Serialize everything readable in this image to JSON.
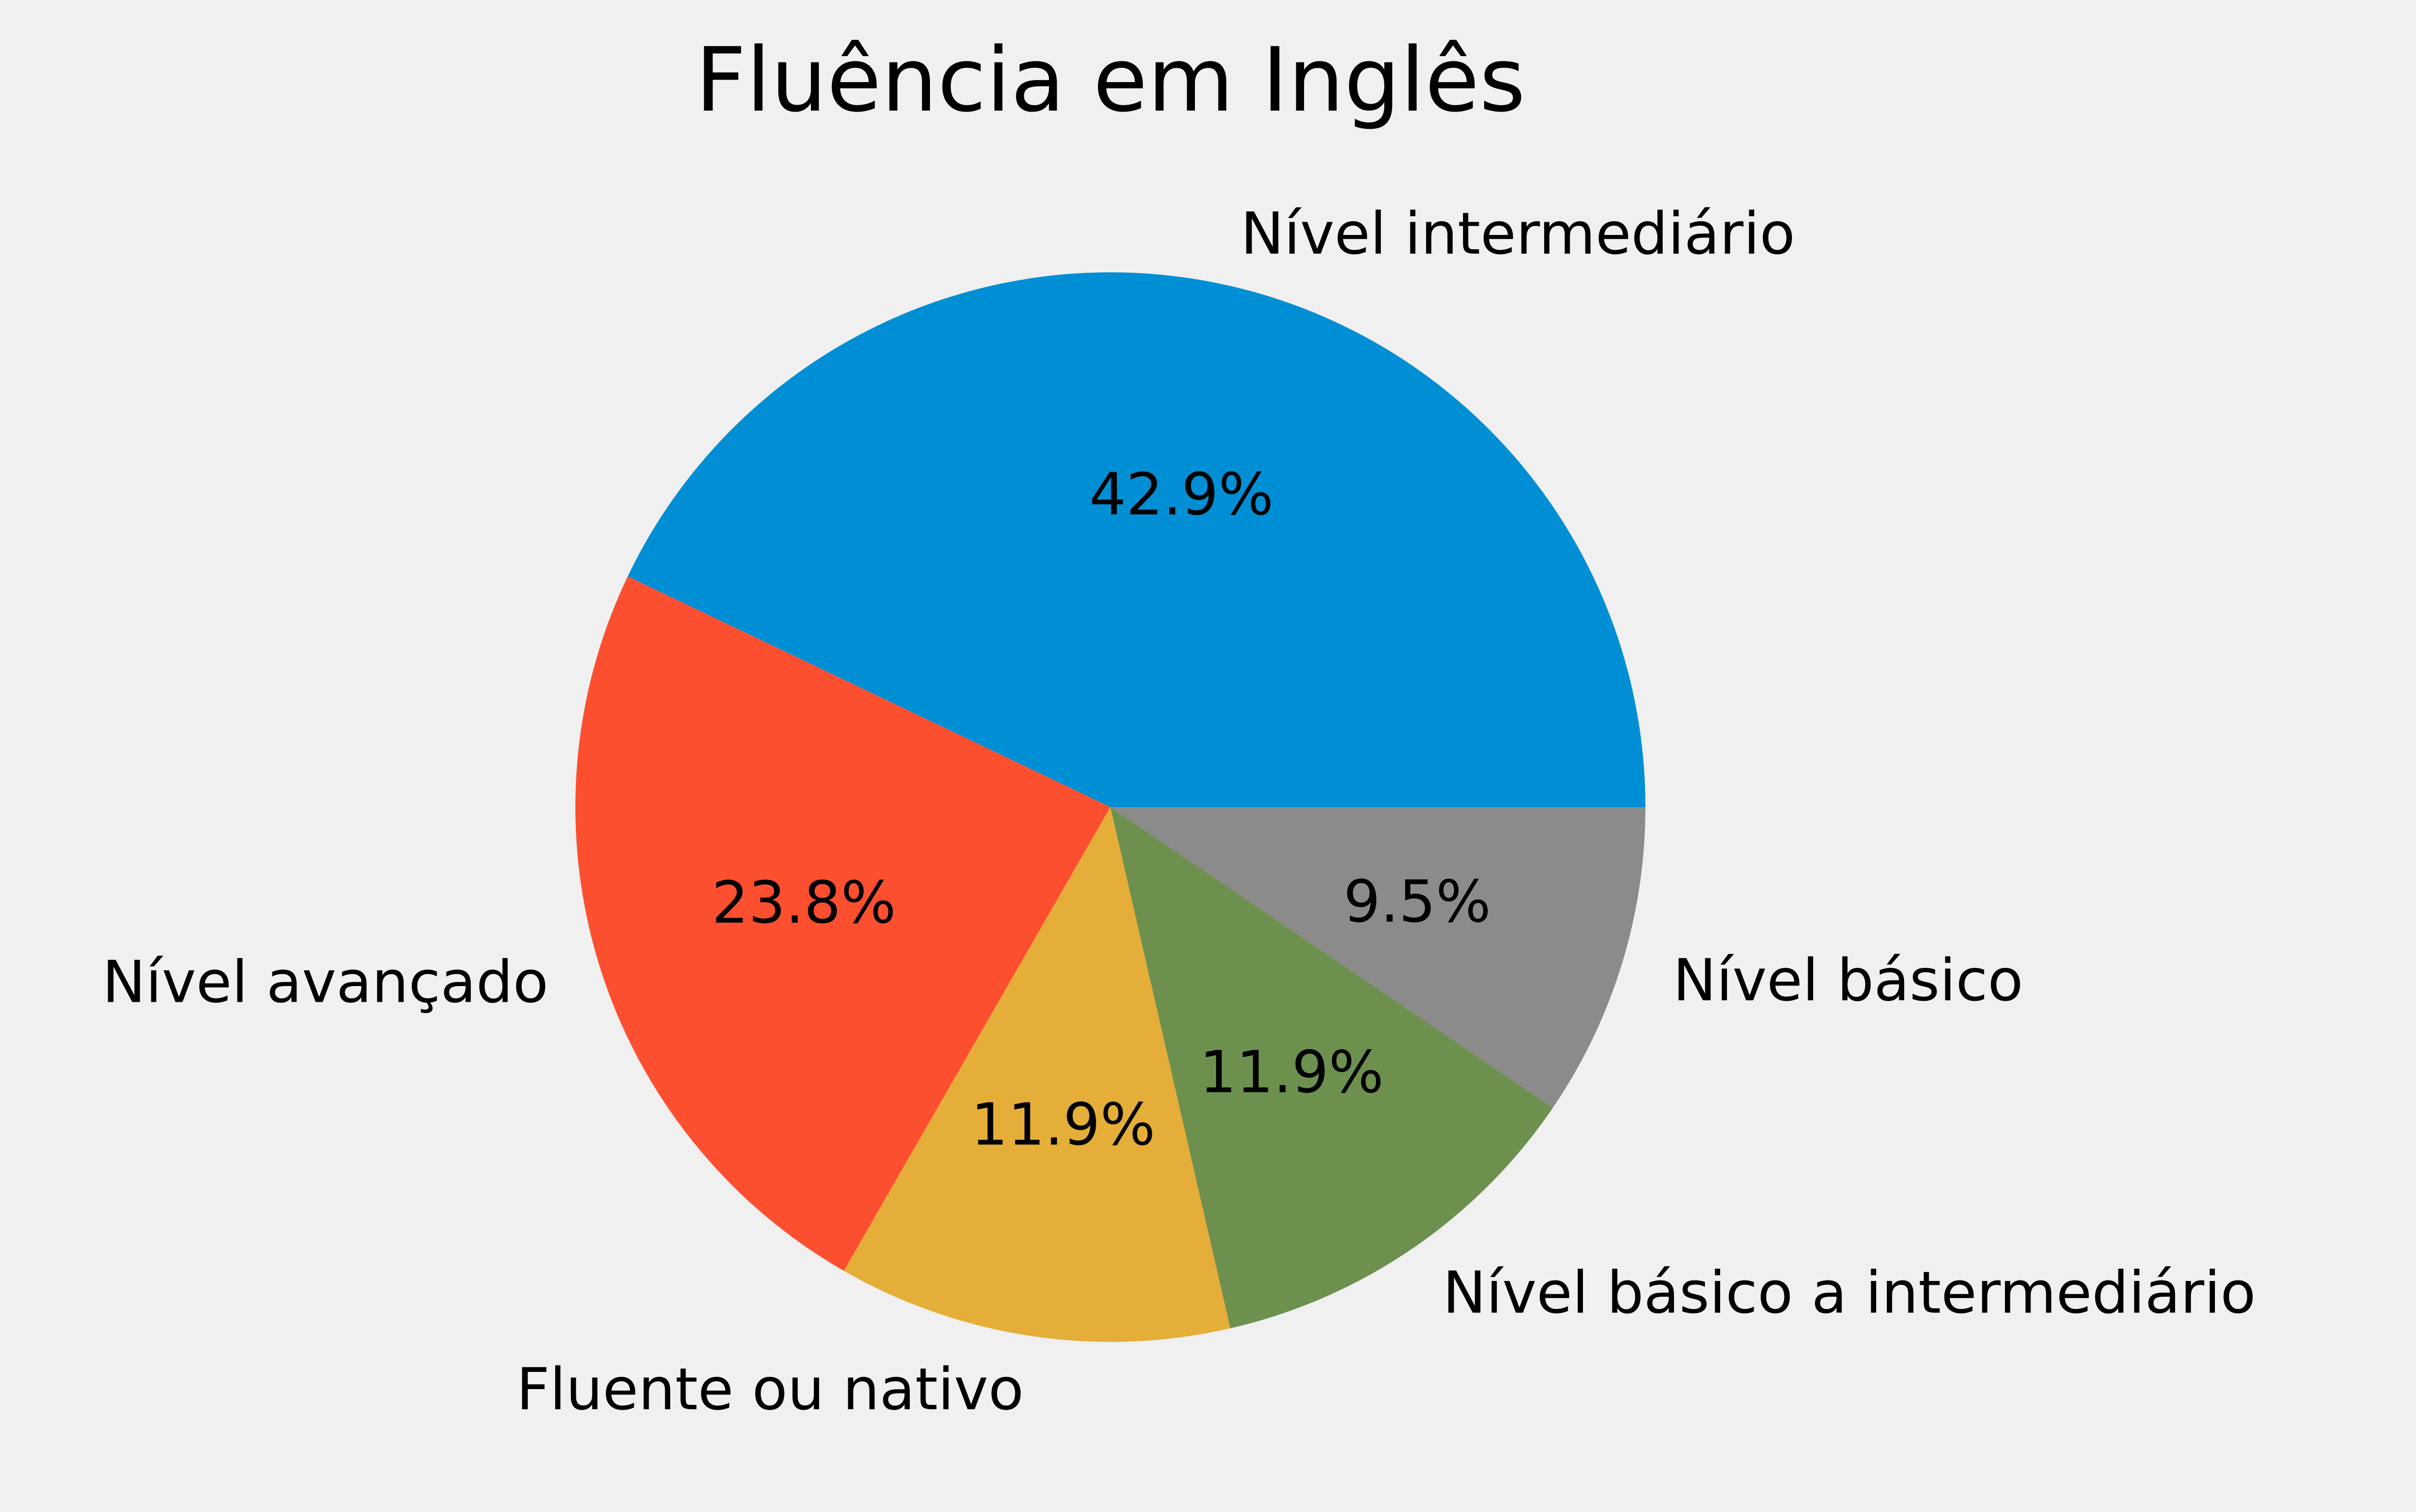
{
  "chart_data": {
    "type": "pie",
    "title": "Fluência em Inglês",
    "start_angle_deg": 0,
    "direction": "counterclockwise",
    "slices": [
      {
        "label": "Nível intermediário",
        "value": 42.9,
        "pct_text": "42.9%",
        "color": "#008fd5"
      },
      {
        "label": "Nível avançado",
        "value": 23.8,
        "pct_text": "23.8%",
        "color": "#fc4f30"
      },
      {
        "label": "Fluente ou nativo",
        "value": 11.9,
        "pct_text": "11.9%",
        "color": "#e5ae38"
      },
      {
        "label": "Nível básico a intermediário",
        "value": 11.9,
        "pct_text": "11.9%",
        "color": "#6d904f"
      },
      {
        "label": "Nível básico",
        "value": 9.5,
        "pct_text": "9.5%",
        "color": "#8b8b8b"
      }
    ]
  }
}
